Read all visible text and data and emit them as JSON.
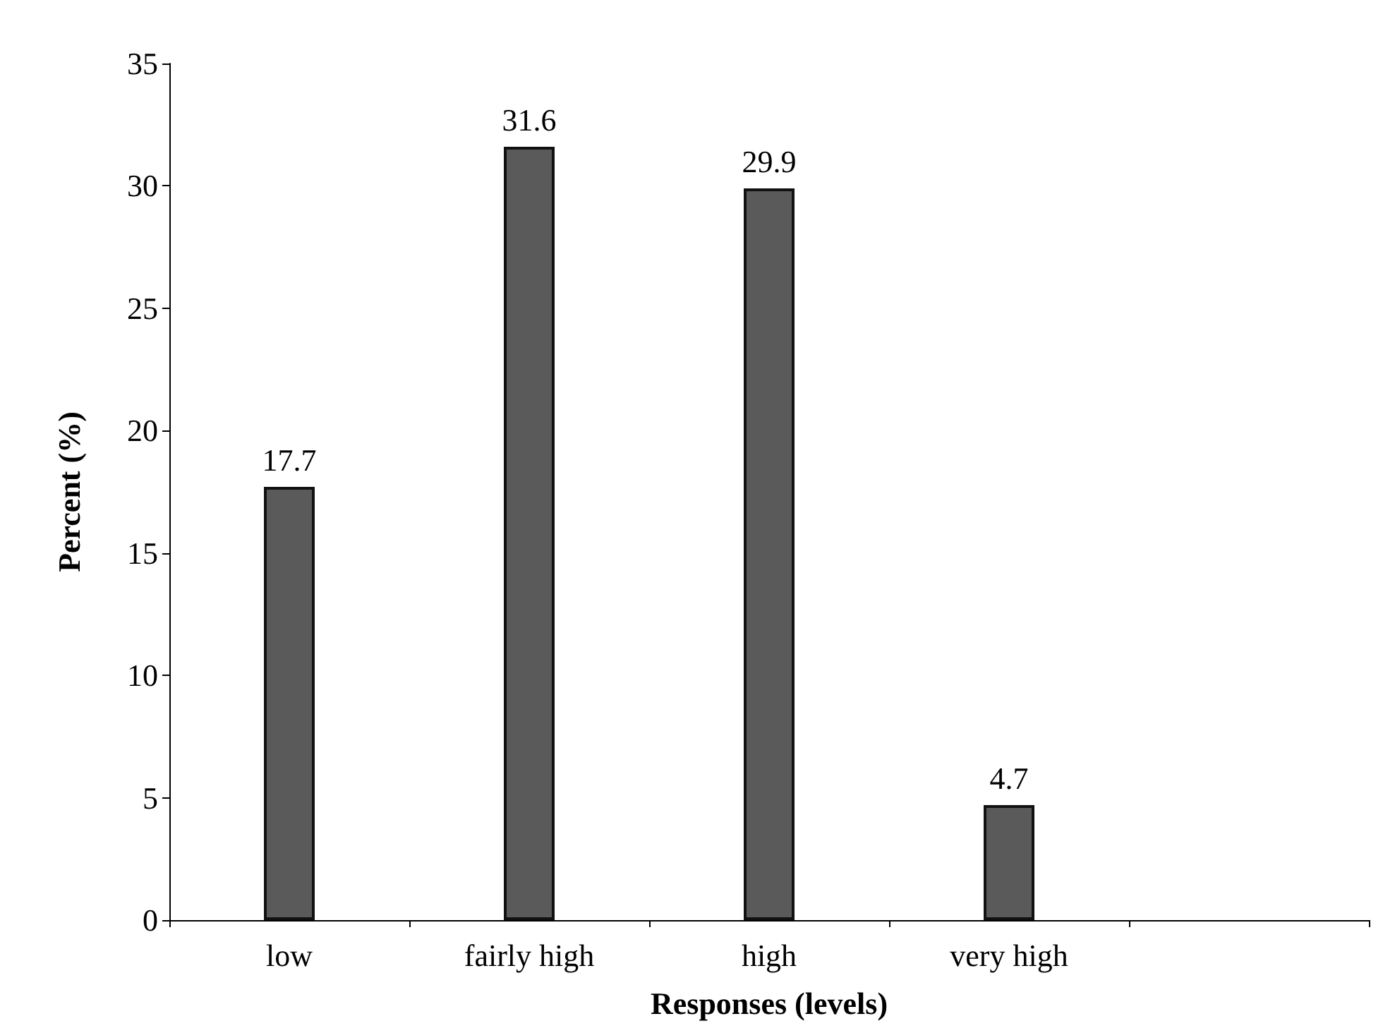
{
  "chart_data": {
    "type": "bar",
    "xlabel": "Responses (levels)",
    "ylabel": "Percent (%)",
    "categories": [
      "low",
      "fairly high",
      "high",
      "very high",
      null
    ],
    "values": [
      17.7,
      31.6,
      29.9,
      4.7,
      null
    ],
    "color": "#5a5a5a",
    "ylim": [
      0,
      35
    ],
    "yticks": [
      0,
      5,
      10,
      15,
      20,
      25,
      30,
      35
    ],
    "grid": false,
    "data_labels": true
  }
}
